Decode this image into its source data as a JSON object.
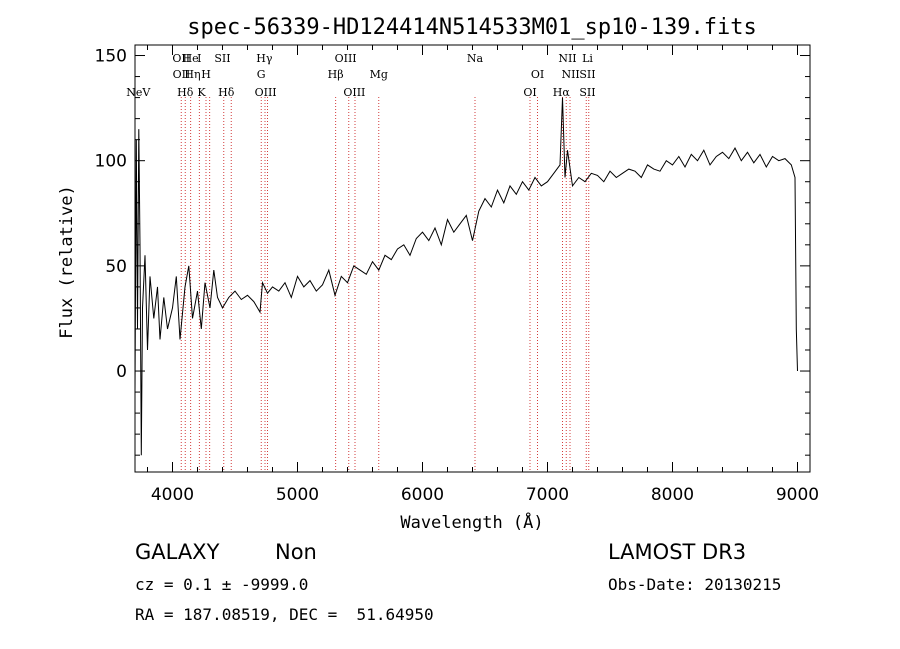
{
  "chart_data": {
    "type": "line",
    "title": "spec-56339-HD124414N514533M01_sp10-139.fits",
    "xlabel": "Wavelength (Å)",
    "ylabel": "Flux (relative)",
    "xlim": [
      3700,
      9100
    ],
    "ylim": [
      -48,
      155
    ],
    "xticks": [
      4000,
      5000,
      6000,
      7000,
      8000,
      9000
    ],
    "yticks": [
      0,
      50,
      100,
      150
    ],
    "grid": false,
    "series": [
      {
        "x": [
          3700,
          3710,
          3720,
          3730,
          3740,
          3750,
          3760,
          3780,
          3800,
          3820,
          3850,
          3880,
          3900,
          3930,
          3960,
          4000,
          4030,
          4060,
          4100,
          4130,
          4160,
          4200,
          4230,
          4260,
          4300,
          4330,
          4360,
          4400,
          4450,
          4500,
          4550,
          4600,
          4650,
          4700,
          4720,
          4760,
          4800,
          4850,
          4900,
          4950,
          5000,
          5050,
          5100,
          5150,
          5200,
          5250,
          5300,
          5350,
          5400,
          5450,
          5500,
          5550,
          5600,
          5650,
          5700,
          5750,
          5800,
          5850,
          5900,
          5950,
          6000,
          6050,
          6100,
          6150,
          6200,
          6250,
          6300,
          6350,
          6400,
          6450,
          6500,
          6550,
          6600,
          6650,
          6700,
          6750,
          6800,
          6850,
          6900,
          6950,
          7000,
          7050,
          7100,
          7120,
          7140,
          7160,
          7200,
          7250,
          7300,
          7350,
          7400,
          7450,
          7500,
          7550,
          7600,
          7650,
          7700,
          7750,
          7800,
          7850,
          7900,
          7950,
          8000,
          8050,
          8100,
          8150,
          8200,
          8250,
          8300,
          8350,
          8400,
          8450,
          8500,
          8550,
          8600,
          8650,
          8700,
          8750,
          8800,
          8850,
          8900,
          8950,
          8980,
          8990,
          9000
        ],
        "y": [
          -10,
          110,
          20,
          115,
          60,
          -40,
          30,
          55,
          10,
          45,
          25,
          40,
          15,
          35,
          20,
          30,
          45,
          15,
          40,
          50,
          25,
          38,
          20,
          42,
          30,
          48,
          35,
          30,
          35,
          38,
          34,
          36,
          33,
          28,
          42,
          37,
          40,
          38,
          42,
          35,
          45,
          40,
          43,
          38,
          41,
          48,
          36,
          45,
          42,
          50,
          48,
          46,
          52,
          48,
          55,
          53,
          58,
          60,
          55,
          63,
          66,
          62,
          68,
          60,
          72,
          66,
          70,
          74,
          62,
          76,
          82,
          78,
          86,
          80,
          88,
          84,
          90,
          86,
          92,
          88,
          90,
          94,
          98,
          130,
          92,
          105,
          88,
          92,
          90,
          94,
          93,
          90,
          95,
          92,
          94,
          96,
          95,
          92,
          98,
          96,
          95,
          100,
          98,
          102,
          97,
          103,
          100,
          105,
          98,
          102,
          104,
          101,
          106,
          100,
          104,
          99,
          103,
          97,
          102,
          100,
          101,
          98,
          92,
          20,
          0
        ]
      }
    ],
    "lines": [
      {
        "label": "NeV",
        "wavelength": 3726,
        "row": 3
      },
      {
        "label": "OII",
        "wavelength": 4070,
        "row": 1
      },
      {
        "label": "OII",
        "wavelength": 4072,
        "row": 2
      },
      {
        "label": "Hδ",
        "wavelength": 4102,
        "row": 3
      },
      {
        "label": "He",
        "wavelength": 4145,
        "row": 1
      },
      {
        "label": "Hη",
        "wavelength": 4160,
        "row": 2
      },
      {
        "label": "I",
        "wavelength": 4214,
        "row": 1
      },
      {
        "label": "H",
        "wavelength": 4268,
        "row": 2
      },
      {
        "label": "K",
        "wavelength": 4232,
        "row": 3
      },
      {
        "label": "SII",
        "wavelength": 4400,
        "row": 1
      },
      {
        "label": "Hδ",
        "wavelength": 4430,
        "row": 3
      },
      {
        "label": "Hγ",
        "wavelength": 4735,
        "row": 1
      },
      {
        "label": "G",
        "wavelength": 4709,
        "row": 2
      },
      {
        "label": "OIII",
        "wavelength": 4745,
        "row": 3
      },
      {
        "label": "OIII",
        "wavelength": 5385,
        "row": 1
      },
      {
        "label": "Hβ",
        "wavelength": 5305,
        "row": 2
      },
      {
        "label": "OIII",
        "wavelength": 5455,
        "row": 3
      },
      {
        "label": "Mg",
        "wavelength": 5650,
        "row": 2
      },
      {
        "label": "Na",
        "wavelength": 6420,
        "row": 1
      },
      {
        "label": "OI",
        "wavelength": 6920,
        "row": 2
      },
      {
        "label": "OI",
        "wavelength": 6860,
        "row": 3
      },
      {
        "label": "NII",
        "wavelength": 7160,
        "row": 1
      },
      {
        "label": "Li",
        "wavelength": 7320,
        "row": 1
      },
      {
        "label": "NII",
        "wavelength": 7185,
        "row": 2
      },
      {
        "label": "SII",
        "wavelength": 7320,
        "row": 2
      },
      {
        "label": "Hα",
        "wavelength": 7110,
        "row": 3
      },
      {
        "label": "SII",
        "wavelength": 7320,
        "row": 3
      }
    ],
    "line_positions": [
      4070,
      4102,
      4145,
      4215,
      4268,
      4297,
      4410,
      4470,
      4710,
      4740,
      4760,
      5305,
      5410,
      5460,
      5650,
      6420,
      6860,
      6920,
      7120,
      7150,
      7180,
      7310,
      7330
    ]
  },
  "info": {
    "class": "GALAXY",
    "subclass": "Non",
    "survey": "LAMOST DR3",
    "cz": "cz = 0.1 ± -9999.0",
    "obs_date": "Obs-Date: 20130215",
    "radec": "RA = 187.08519, DEC =  51.64950"
  },
  "colors": {
    "line": "#000000",
    "marker": "#d23c3c"
  }
}
